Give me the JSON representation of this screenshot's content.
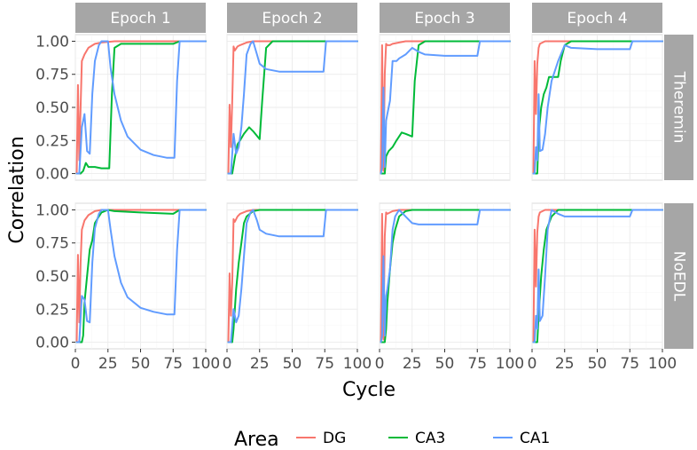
{
  "chart_data": {
    "type": "line",
    "title": "",
    "xlabel": "Cycle",
    "ylabel": "Correlation",
    "xlim": [
      0,
      100
    ],
    "ylim": [
      -0.05,
      1.05
    ],
    "x_ticks": [
      0,
      25,
      50,
      75,
      100
    ],
    "x_tick_labels": [
      "0",
      "25",
      "50",
      "75",
      "100"
    ],
    "y_ticks": [
      0,
      0.25,
      0.5,
      0.75,
      1
    ],
    "y_tick_labels": [
      "0.00",
      "0.25",
      "0.50",
      "0.75",
      "1.00"
    ],
    "grid": true,
    "legend": {
      "title": "Area",
      "position": "bottom",
      "entries": [
        {
          "name": "DG",
          "color": "#F8766D"
        },
        {
          "name": "CA3",
          "color": "#00BA38"
        },
        {
          "name": "CA1",
          "color": "#619CFF"
        }
      ]
    },
    "columns": [
      "Epoch 1",
      "Epoch 2",
      "Epoch 3",
      "Epoch 4"
    ],
    "rows": [
      "Theremin",
      "NoEDL"
    ],
    "panels": [
      {
        "row": 0,
        "col": 0,
        "series": [
          {
            "name": "DG",
            "x": [
              1,
              2,
              3,
              4,
              5,
              7,
              10,
              15,
              20,
              30,
              50,
              80,
              100
            ],
            "y": [
              0.0,
              0.67,
              0.1,
              0.5,
              0.85,
              0.9,
              0.95,
              0.98,
              0.99,
              1.0,
              1.0,
              1.0,
              1.0
            ]
          },
          {
            "name": "CA3",
            "x": [
              1,
              4,
              6,
              8,
              10,
              15,
              20,
              26,
              28,
              30,
              35,
              40,
              60,
              75,
              80,
              100
            ],
            "y": [
              0.0,
              0.0,
              0.02,
              0.08,
              0.05,
              0.05,
              0.04,
              0.04,
              0.6,
              0.95,
              0.98,
              0.98,
              0.98,
              0.98,
              1.0,
              1.0
            ]
          },
          {
            "name": "CA1",
            "x": [
              1,
              3,
              5,
              7,
              9,
              11,
              13,
              15,
              18,
              20,
              25,
              27,
              30,
              35,
              40,
              50,
              60,
              70,
              76,
              78,
              80,
              100
            ],
            "y": [
              0.0,
              0.0,
              0.35,
              0.45,
              0.17,
              0.15,
              0.6,
              0.85,
              0.97,
              1.0,
              1.0,
              0.8,
              0.6,
              0.4,
              0.28,
              0.18,
              0.14,
              0.12,
              0.12,
              0.7,
              1.0,
              1.0
            ]
          }
        ]
      },
      {
        "row": 0,
        "col": 1,
        "series": [
          {
            "name": "DG",
            "x": [
              1,
              2,
              3,
              4,
              5,
              6,
              8,
              10,
              15,
              20,
              30,
              100
            ],
            "y": [
              0.0,
              0.52,
              0.2,
              0.55,
              0.96,
              0.93,
              0.96,
              0.97,
              0.99,
              1.0,
              1.0,
              1.0
            ]
          },
          {
            "name": "CA3",
            "x": [
              1,
              4,
              6,
              8,
              10,
              13,
              17,
              20,
              25,
              27,
              30,
              35,
              40,
              100
            ],
            "y": [
              0.0,
              0.0,
              0.12,
              0.22,
              0.25,
              0.3,
              0.35,
              0.32,
              0.26,
              0.55,
              0.95,
              1.0,
              1.0,
              1.0
            ]
          },
          {
            "name": "CA1",
            "x": [
              1,
              3,
              5,
              7,
              9,
              11,
              13,
              15,
              18,
              20,
              23,
              25,
              30,
              40,
              60,
              74,
              76,
              80,
              100
            ],
            "y": [
              0.0,
              0.0,
              0.3,
              0.15,
              0.2,
              0.35,
              0.6,
              0.9,
              0.98,
              1.0,
              0.9,
              0.83,
              0.79,
              0.77,
              0.77,
              0.77,
              1.0,
              1.0,
              1.0
            ]
          }
        ]
      },
      {
        "row": 0,
        "col": 2,
        "series": [
          {
            "name": "DG",
            "x": [
              1,
              2,
              3,
              4,
              5,
              6,
              8,
              10,
              15,
              20,
              30,
              100
            ],
            "y": [
              0.0,
              0.97,
              0.02,
              0.75,
              0.98,
              0.97,
              0.97,
              0.98,
              0.99,
              1.0,
              1.0,
              1.0
            ]
          },
          {
            "name": "CA3",
            "x": [
              1,
              4,
              5,
              7,
              10,
              13,
              17,
              20,
              25,
              27,
              30,
              35,
              100
            ],
            "y": [
              0.0,
              0.0,
              0.13,
              0.17,
              0.2,
              0.25,
              0.31,
              0.3,
              0.28,
              0.7,
              0.97,
              1.0,
              1.0
            ]
          },
          {
            "name": "CA1",
            "x": [
              1,
              2,
              3,
              4,
              5,
              6,
              8,
              10,
              13,
              15,
              20,
              25,
              30,
              35,
              50,
              75,
              77,
              80,
              100
            ],
            "y": [
              0.0,
              0.05,
              0.65,
              0.05,
              0.4,
              0.45,
              0.55,
              0.85,
              0.85,
              0.87,
              0.9,
              0.95,
              0.92,
              0.9,
              0.89,
              0.89,
              1.0,
              1.0,
              1.0
            ]
          }
        ]
      },
      {
        "row": 0,
        "col": 3,
        "series": [
          {
            "name": "DG",
            "x": [
              1,
              2,
              3,
              4,
              5,
              6,
              8,
              10,
              15,
              20,
              30,
              100
            ],
            "y": [
              0.0,
              0.85,
              0.45,
              0.83,
              0.95,
              0.98,
              0.99,
              1.0,
              1.0,
              1.0,
              1.0,
              1.0
            ]
          },
          {
            "name": "CA3",
            "x": [
              1,
              4,
              5,
              7,
              9,
              11,
              13,
              15,
              20,
              22,
              25,
              30,
              100
            ],
            "y": [
              0.0,
              0.0,
              0.3,
              0.5,
              0.6,
              0.65,
              0.73,
              0.73,
              0.73,
              0.85,
              0.97,
              1.0,
              1.0
            ]
          },
          {
            "name": "CA1",
            "x": [
              1,
              2,
              3,
              4,
              5,
              6,
              8,
              10,
              12,
              15,
              20,
              25,
              30,
              50,
              75,
              77,
              80,
              100
            ],
            "y": [
              0.0,
              0.0,
              0.2,
              0.1,
              0.6,
              0.17,
              0.18,
              0.3,
              0.5,
              0.7,
              0.85,
              0.97,
              0.95,
              0.94,
              0.94,
              1.0,
              1.0,
              1.0
            ]
          }
        ]
      },
      {
        "row": 1,
        "col": 0,
        "series": [
          {
            "name": "DG",
            "x": [
              1,
              2,
              3,
              4,
              5,
              7,
              10,
              15,
              20,
              30,
              100
            ],
            "y": [
              0.0,
              0.66,
              0.15,
              0.6,
              0.85,
              0.92,
              0.96,
              0.99,
              1.0,
              1.0,
              1.0
            ]
          },
          {
            "name": "CA3",
            "x": [
              1,
              5,
              6,
              7,
              9,
              11,
              13,
              15,
              18,
              20,
              25,
              30,
              50,
              75,
              80,
              100
            ],
            "y": [
              0.0,
              0.0,
              0.05,
              0.3,
              0.5,
              0.7,
              0.77,
              0.9,
              0.95,
              0.98,
              1.0,
              0.99,
              0.98,
              0.97,
              1.0,
              1.0
            ]
          },
          {
            "name": "CA1",
            "x": [
              1,
              3,
              5,
              7,
              9,
              11,
              13,
              15,
              18,
              20,
              25,
              27,
              30,
              35,
              40,
              50,
              60,
              70,
              76,
              78,
              80,
              100
            ],
            "y": [
              0.0,
              0.0,
              0.35,
              0.32,
              0.16,
              0.15,
              0.6,
              0.86,
              0.97,
              1.0,
              1.0,
              0.85,
              0.65,
              0.45,
              0.34,
              0.26,
              0.23,
              0.21,
              0.21,
              0.7,
              1.0,
              1.0
            ]
          }
        ]
      },
      {
        "row": 1,
        "col": 1,
        "series": [
          {
            "name": "DG",
            "x": [
              1,
              2,
              3,
              4,
              5,
              6,
              8,
              10,
              15,
              20,
              30,
              100
            ],
            "y": [
              0.0,
              0.52,
              0.2,
              0.45,
              0.93,
              0.91,
              0.95,
              0.97,
              0.99,
              1.0,
              1.0,
              1.0
            ]
          },
          {
            "name": "CA3",
            "x": [
              1,
              4,
              5,
              7,
              9,
              11,
              13,
              15,
              20,
              25,
              30,
              100
            ],
            "y": [
              0.0,
              0.0,
              0.1,
              0.4,
              0.6,
              0.75,
              0.9,
              0.95,
              0.99,
              1.0,
              1.0,
              1.0
            ]
          },
          {
            "name": "CA1",
            "x": [
              1,
              3,
              5,
              7,
              9,
              11,
              13,
              15,
              18,
              20,
              23,
              25,
              30,
              40,
              60,
              74,
              76,
              80,
              100
            ],
            "y": [
              0.0,
              0.0,
              0.25,
              0.15,
              0.2,
              0.4,
              0.65,
              0.9,
              0.98,
              1.0,
              0.92,
              0.85,
              0.82,
              0.8,
              0.8,
              0.8,
              1.0,
              1.0,
              1.0
            ]
          }
        ]
      },
      {
        "row": 1,
        "col": 2,
        "series": [
          {
            "name": "DG",
            "x": [
              1,
              2,
              3,
              4,
              5,
              6,
              8,
              10,
              15,
              20,
              30,
              100
            ],
            "y": [
              0.0,
              0.97,
              0.02,
              0.8,
              0.98,
              0.97,
              0.98,
              0.99,
              1.0,
              1.0,
              1.0,
              1.0
            ]
          },
          {
            "name": "CA3",
            "x": [
              1,
              4,
              5,
              6,
              8,
              10,
              12,
              15,
              20,
              25,
              30,
              100
            ],
            "y": [
              0.0,
              0.0,
              0.1,
              0.3,
              0.55,
              0.75,
              0.85,
              0.95,
              0.99,
              1.0,
              1.0,
              1.0
            ]
          },
          {
            "name": "CA1",
            "x": [
              1,
              2,
              3,
              4,
              5,
              6,
              8,
              10,
              12,
              15,
              20,
              25,
              30,
              50,
              75,
              77,
              80,
              100
            ],
            "y": [
              0.0,
              0.05,
              0.65,
              0.05,
              0.35,
              0.4,
              0.55,
              0.85,
              0.95,
              1.0,
              0.95,
              0.9,
              0.89,
              0.89,
              0.89,
              1.0,
              1.0,
              1.0
            ]
          }
        ]
      },
      {
        "row": 1,
        "col": 3,
        "series": [
          {
            "name": "DG",
            "x": [
              1,
              2,
              3,
              4,
              5,
              6,
              8,
              10,
              15,
              20,
              30,
              100
            ],
            "y": [
              0.0,
              0.85,
              0.42,
              0.83,
              0.95,
              0.98,
              0.99,
              1.0,
              1.0,
              1.0,
              1.0,
              1.0
            ]
          },
          {
            "name": "CA3",
            "x": [
              1,
              4,
              5,
              7,
              9,
              11,
              13,
              15,
              20,
              25,
              30,
              100
            ],
            "y": [
              0.0,
              0.0,
              0.2,
              0.5,
              0.7,
              0.85,
              0.9,
              0.95,
              1.0,
              1.0,
              1.0,
              1.0
            ]
          },
          {
            "name": "CA1",
            "x": [
              1,
              2,
              3,
              4,
              5,
              6,
              8,
              10,
              12,
              15,
              20,
              25,
              30,
              50,
              75,
              77,
              80,
              100
            ],
            "y": [
              0.0,
              0.0,
              0.2,
              0.1,
              0.55,
              0.16,
              0.2,
              0.5,
              0.85,
              1.0,
              0.97,
              0.95,
              0.95,
              0.95,
              0.95,
              1.0,
              1.0,
              1.0
            ]
          }
        ]
      }
    ]
  }
}
